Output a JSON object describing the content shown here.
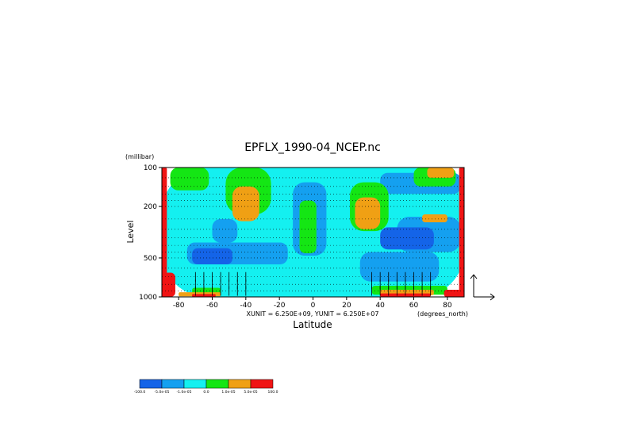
{
  "chart_data": {
    "type": "heatmap",
    "title": "EPFLX_1990-04_NCEP.nc",
    "xlabel": "Latitude",
    "ylabel": "Level",
    "y_unit": "(millibar)",
    "x_unit": "(degrees_north)",
    "vector_scale_text": "XUNIT = 6.250E+09, YUNIT = 6.250E+07",
    "xlim": [
      -90,
      90
    ],
    "ylim": [
      1000,
      100
    ],
    "y_scale": "log",
    "x_ticks": [
      -80,
      -60,
      -40,
      -20,
      0,
      20,
      40,
      60,
      80
    ],
    "x_tick_labels": [
      "-80",
      "-60",
      "-40",
      "-20",
      "0",
      "20",
      "40",
      "60",
      "80"
    ],
    "y_ticks": [
      100,
      200,
      500,
      1000
    ],
    "y_tick_labels": [
      "100",
      "200",
      "500",
      "1000"
    ],
    "grid": "dotted horizontal lines",
    "colorbar": {
      "colors": [
        "#1464e8",
        "#14a0f0",
        "#14f0f0",
        "#14e614",
        "#f0a014",
        "#f01414"
      ],
      "labels": [
        "-100.0",
        "-5.0e-05",
        "-1.0e-05",
        "0.0",
        "1.0e-05",
        "5.0e-05",
        "100.0"
      ]
    },
    "regions": [
      {
        "class": 2,
        "lat": [
          -90,
          90
        ],
        "lev": [
          100,
          1000
        ]
      },
      {
        "class": 1,
        "lat": [
          -75,
          -15
        ],
        "lev": [
          380,
          560
        ]
      },
      {
        "class": 1,
        "lat": [
          -60,
          -45
        ],
        "lev": [
          250,
          380
        ]
      },
      {
        "class": 1,
        "lat": [
          -12,
          8
        ],
        "lev": [
          130,
          480
        ]
      },
      {
        "class": 1,
        "lat": [
          50,
          88
        ],
        "lev": [
          240,
          450
        ]
      },
      {
        "class": 1,
        "lat": [
          28,
          75
        ],
        "lev": [
          450,
          760
        ]
      },
      {
        "class": 1,
        "lat": [
          40,
          88
        ],
        "lev": [
          110,
          160
        ]
      },
      {
        "class": 0,
        "lat": [
          40,
          72
        ],
        "lev": [
          290,
          430
        ]
      },
      {
        "class": 0,
        "lat": [
          -72,
          -48
        ],
        "lev": [
          420,
          560
        ]
      },
      {
        "class": 3,
        "lat": [
          -85,
          -62
        ],
        "lev": [
          100,
          150
        ]
      },
      {
        "class": 3,
        "lat": [
          -52,
          -25
        ],
        "lev": [
          100,
          230
        ]
      },
      {
        "class": 3,
        "lat": [
          -8,
          2
        ],
        "lev": [
          180,
          460
        ]
      },
      {
        "class": 3,
        "lat": [
          22,
          45
        ],
        "lev": [
          130,
          310
        ]
      },
      {
        "class": 3,
        "lat": [
          60,
          85
        ],
        "lev": [
          100,
          140
        ]
      },
      {
        "class": 3,
        "lat": [
          -72,
          -55
        ],
        "lev": [
          850,
          960
        ]
      },
      {
        "class": 3,
        "lat": [
          35,
          80
        ],
        "lev": [
          820,
          960
        ]
      },
      {
        "class": 4,
        "lat": [
          -48,
          -32
        ],
        "lev": [
          140,
          260
        ]
      },
      {
        "class": 4,
        "lat": [
          25,
          40
        ],
        "lev": [
          170,
          300
        ]
      },
      {
        "class": 4,
        "lat": [
          68,
          84
        ],
        "lev": [
          100,
          120
        ]
      },
      {
        "class": 4,
        "lat": [
          65,
          80
        ],
        "lev": [
          230,
          265
        ]
      },
      {
        "class": 4,
        "lat": [
          -80,
          -55
        ],
        "lev": [
          920,
          990
        ]
      },
      {
        "class": 4,
        "lat": [
          40,
          72
        ],
        "lev": [
          880,
          970
        ]
      },
      {
        "class": 5,
        "lat": [
          -90,
          -87
        ],
        "lev": [
          100,
          1000
        ]
      },
      {
        "class": 5,
        "lat": [
          87,
          90
        ],
        "lev": [
          100,
          1000
        ]
      },
      {
        "class": 5,
        "lat": [
          -90,
          -82
        ],
        "lev": [
          650,
          1000
        ]
      },
      {
        "class": 5,
        "lat": [
          -72,
          -58
        ],
        "lev": [
          950,
          1000
        ]
      },
      {
        "class": 5,
        "lat": [
          40,
          70
        ],
        "lev": [
          940,
          1000
        ]
      },
      {
        "class": 5,
        "lat": [
          78,
          90
        ],
        "lev": [
          880,
          1000
        ]
      }
    ],
    "vectors": {
      "lat": [
        -70,
        -65,
        -60,
        -55,
        -50,
        -45,
        -40,
        35,
        40,
        45,
        50,
        55,
        60,
        65,
        70
      ],
      "lev": [
        700,
        800,
        900
      ]
    }
  }
}
